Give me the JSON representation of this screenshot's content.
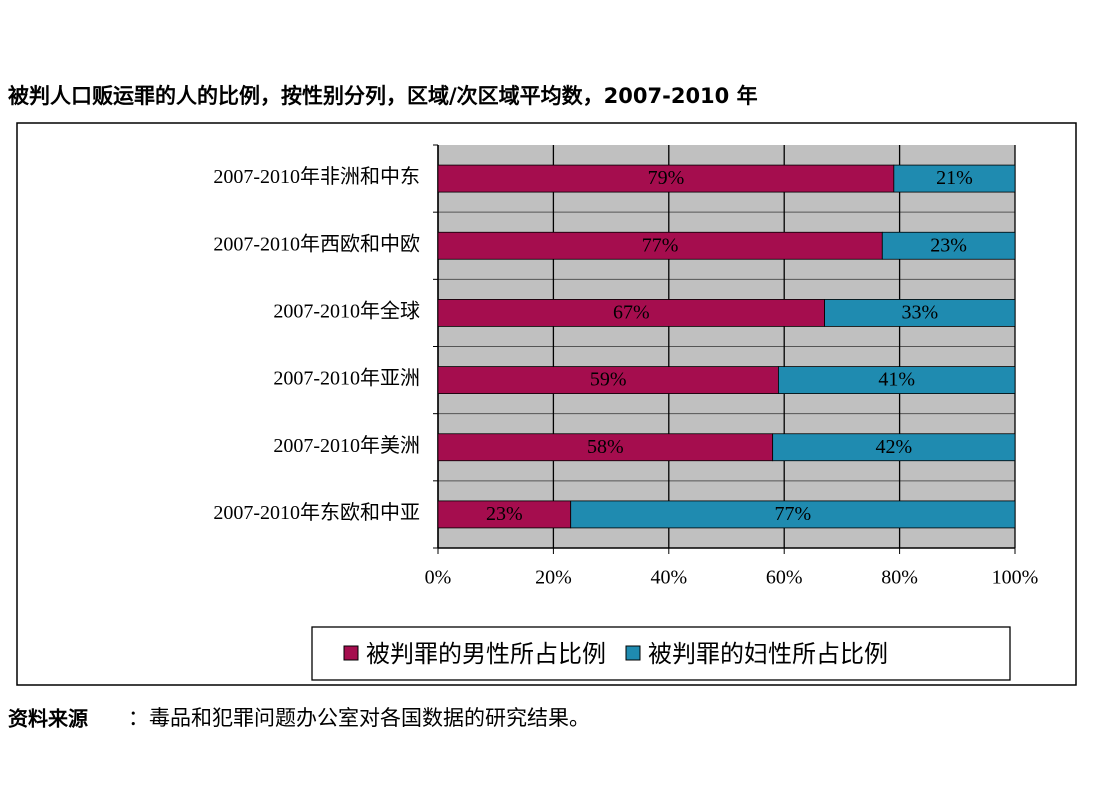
{
  "chart_data": {
    "type": "stacked-horizontal-bar",
    "title": "被判人口贩运罪的人的比例，按性别分列，区域/次区域平均数，2007-2010 年",
    "categories": [
      "2007-2010年非洲和中东",
      "2007-2010年西欧和中欧",
      "2007-2010年全球",
      "2007-2010年亚洲",
      "2007-2010年美洲",
      "2007-2010年东欧和中亚"
    ],
    "series": [
      {
        "name": "被判罪的男性所占比例",
        "color": "#a50d4e",
        "values": [
          79,
          77,
          67,
          59,
          58,
          23
        ],
        "value_labels": [
          "79%",
          "77%",
          "67%",
          "59%",
          "58%",
          "23%"
        ]
      },
      {
        "name": "被判罪的妇性所占比例",
        "color": "#1f8bb0",
        "values": [
          21,
          23,
          33,
          41,
          42,
          77
        ],
        "value_labels": [
          "21%",
          "23%",
          "33%",
          "41%",
          "42%",
          "77%"
        ]
      }
    ],
    "xlim": [
      0,
      100
    ],
    "xticks": [
      {
        "value": 0,
        "label": "0%"
      },
      {
        "value": 20,
        "label": "20%"
      },
      {
        "value": 40,
        "label": "40%"
      },
      {
        "value": 60,
        "label": "60%"
      },
      {
        "value": 80,
        "label": "80%"
      },
      {
        "value": 100,
        "label": "100%"
      }
    ],
    "grid": true,
    "legend": "bottom",
    "source_label": "资料来源",
    "source_text": "：毒品和犯罪问题办公室对各国数据的研究结果。"
  }
}
